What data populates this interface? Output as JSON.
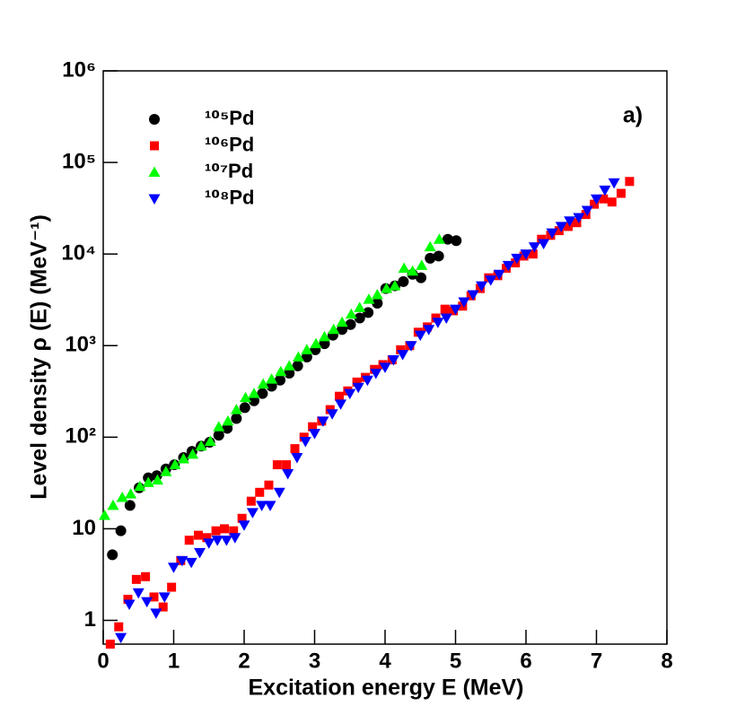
{
  "chart_data": {
    "type": "scatter",
    "annotation": "a)",
    "xlabel": "Excitation energy E (MeV)",
    "ylabel": "Level density ρ (E) (MeV⁻¹)",
    "xlim": [
      0,
      8
    ],
    "xticks": [
      0,
      1,
      2,
      3,
      4,
      5,
      6,
      7,
      8
    ],
    "ylim": [
      0.55,
      1000000
    ],
    "log_y": true,
    "yticks": [
      1,
      10,
      {
        "value": 100,
        "label": "10²"
      },
      {
        "value": 1000,
        "label": "10³"
      },
      {
        "value": 10000,
        "label": "10⁴"
      },
      {
        "value": 100000,
        "label": "10⁵"
      },
      {
        "value": 1000000,
        "label": "10⁶"
      }
    ],
    "legend": "upper left",
    "series": [
      {
        "name": "¹⁰⁵Pd",
        "color": "#000000",
        "marker": "circle",
        "x": [
          0.13,
          0.25,
          0.38,
          0.51,
          0.64,
          0.76,
          0.89,
          1.01,
          1.14,
          1.26,
          1.39,
          1.51,
          1.64,
          1.76,
          1.89,
          2.01,
          2.14,
          2.26,
          2.39,
          2.51,
          2.64,
          2.76,
          2.89,
          3.01,
          3.14,
          3.26,
          3.39,
          3.51,
          3.64,
          3.76,
          3.89,
          4.01,
          4.14,
          4.26,
          4.39,
          4.51,
          4.64,
          4.76,
          4.89,
          5.01
        ],
        "values": [
          5.2,
          9.5,
          18,
          28,
          36,
          38,
          45,
          50,
          60,
          70,
          80,
          88,
          105,
          125,
          160,
          210,
          250,
          300,
          360,
          420,
          500,
          600,
          750,
          900,
          1050,
          1300,
          1500,
          1700,
          2000,
          2300,
          2900,
          4200,
          4500,
          5000,
          6000,
          5500,
          9000,
          9500,
          14500,
          14000
        ]
      },
      {
        "name": "¹⁰⁶Pd",
        "color": "#ff0000",
        "marker": "square",
        "x": [
          0.1,
          0.22,
          0.35,
          0.47,
          0.6,
          0.72,
          0.85,
          0.97,
          1.1,
          1.22,
          1.35,
          1.47,
          1.6,
          1.72,
          1.85,
          1.97,
          2.1,
          2.22,
          2.35,
          2.47,
          2.6,
          2.72,
          2.85,
          2.97,
          3.1,
          3.22,
          3.35,
          3.47,
          3.6,
          3.72,
          3.85,
          3.97,
          4.1,
          4.22,
          4.35,
          4.47,
          4.6,
          4.72,
          4.85,
          4.97,
          5.1,
          5.22,
          5.35,
          5.47,
          5.6,
          5.72,
          5.85,
          5.97,
          6.1,
          6.22,
          6.35,
          6.47,
          6.6,
          6.72,
          6.85,
          6.97,
          7.1,
          7.22,
          7.35,
          7.47
        ],
        "values": [
          0.55,
          0.85,
          1.7,
          2.8,
          3.0,
          1.8,
          1.4,
          2.3,
          4.5,
          7.5,
          8.5,
          8,
          9.5,
          10,
          9.5,
          13,
          20,
          25,
          30,
          50,
          50,
          75,
          100,
          130,
          150,
          200,
          280,
          320,
          400,
          450,
          550,
          620,
          700,
          900,
          1000,
          1400,
          1600,
          2000,
          2500,
          2400,
          2700,
          3500,
          4200,
          5500,
          5800,
          7000,
          8000,
          9500,
          10000,
          14500,
          16000,
          18000,
          20000,
          22000,
          27000,
          35000,
          40000,
          37000,
          46000,
          62000
        ]
      },
      {
        "name": "¹⁰⁷Pd",
        "color": "#00ff00",
        "marker": "triangle",
        "x": [
          0.02,
          0.14,
          0.27,
          0.39,
          0.52,
          0.64,
          0.77,
          0.89,
          1.02,
          1.14,
          1.27,
          1.39,
          1.52,
          1.64,
          1.77,
          1.89,
          2.02,
          2.14,
          2.27,
          2.39,
          2.52,
          2.64,
          2.77,
          2.89,
          3.02,
          3.14,
          3.27,
          3.39,
          3.52,
          3.64,
          3.77,
          3.89,
          4.02,
          4.14,
          4.27,
          4.39,
          4.52,
          4.64,
          4.77
        ],
        "values": [
          14,
          18,
          22,
          24,
          29,
          32,
          34,
          42,
          50,
          58,
          65,
          80,
          90,
          130,
          150,
          200,
          270,
          300,
          380,
          430,
          520,
          600,
          750,
          900,
          1050,
          1250,
          1500,
          1800,
          2200,
          2600,
          3200,
          3600,
          4200,
          4500,
          7000,
          6500,
          7500,
          12000,
          14500
        ]
      },
      {
        "name": "¹⁰⁸Pd",
        "color": "#0000ff",
        "marker": "triangle-down",
        "x": [
          0.25,
          0.37,
          0.5,
          0.62,
          0.75,
          0.87,
          1.0,
          1.12,
          1.25,
          1.37,
          1.5,
          1.62,
          1.75,
          1.87,
          2.0,
          2.12,
          2.25,
          2.37,
          2.5,
          2.62,
          2.75,
          2.87,
          3.0,
          3.12,
          3.25,
          3.37,
          3.5,
          3.62,
          3.75,
          3.87,
          4.0,
          4.12,
          4.25,
          4.37,
          4.5,
          4.62,
          4.75,
          4.87,
          5.0,
          5.12,
          5.25,
          5.37,
          5.5,
          5.62,
          5.75,
          5.87,
          6.0,
          6.12,
          6.25,
          6.37,
          6.5,
          6.62,
          6.75,
          6.87,
          7.0,
          7.12,
          7.25
        ],
        "values": [
          0.65,
          1.5,
          2.0,
          1.6,
          1.2,
          1.8,
          3.8,
          4.5,
          4.3,
          5.5,
          7.0,
          7.5,
          7.5,
          8.0,
          11,
          15,
          18,
          18,
          25,
          40,
          60,
          90,
          110,
          150,
          180,
          230,
          300,
          350,
          420,
          500,
          580,
          700,
          800,
          1000,
          1300,
          1500,
          1800,
          2000,
          2500,
          3000,
          3600,
          4500,
          5200,
          6000,
          7500,
          9000,
          10000,
          12000,
          13000,
          17000,
          20000,
          23000,
          25000,
          30000,
          40000,
          50000,
          60000
        ]
      }
    ]
  }
}
